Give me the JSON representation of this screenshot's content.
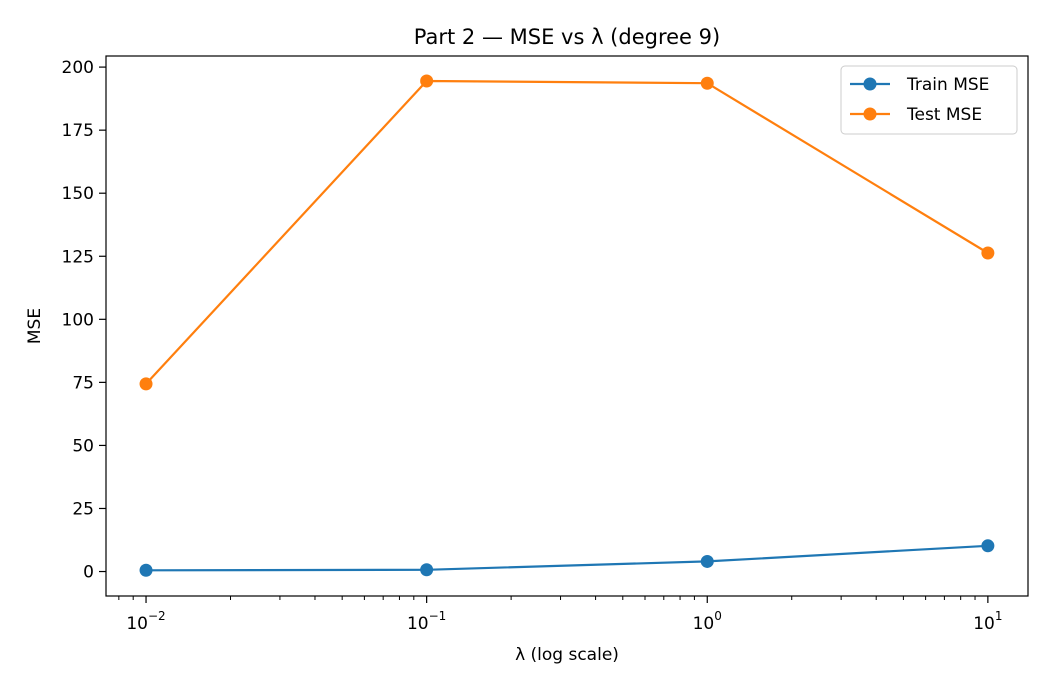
{
  "chart_data": {
    "type": "line",
    "title": "Part 2 — MSE vs λ (degree 9)",
    "xlabel": "λ (log scale)",
    "ylabel": "MSE",
    "x_scale": "log",
    "x": [
      0.01,
      0.1,
      1,
      10
    ],
    "x_ticks": [
      {
        "base": "10",
        "exp": "−2",
        "value": 0.01
      },
      {
        "base": "10",
        "exp": "−1",
        "value": 0.1
      },
      {
        "base": "10",
        "exp": "0",
        "value": 1
      },
      {
        "base": "10",
        "exp": "1",
        "value": 10
      }
    ],
    "xlim": [
      0.0072,
      13.9
    ],
    "ylim": [
      -9.7,
      204.4
    ],
    "y_ticks": [
      0,
      25,
      50,
      75,
      100,
      125,
      150,
      175,
      200
    ],
    "series": [
      {
        "name": "Train MSE",
        "color": "#1f77b4",
        "values": [
          0.5,
          0.7,
          4.0,
          10.2
        ]
      },
      {
        "name": "Test MSE",
        "color": "#ff7f0e",
        "values": [
          74.4,
          194.5,
          193.6,
          126.3
        ]
      }
    ],
    "legend": {
      "position": "top-right"
    },
    "grid": false
  }
}
